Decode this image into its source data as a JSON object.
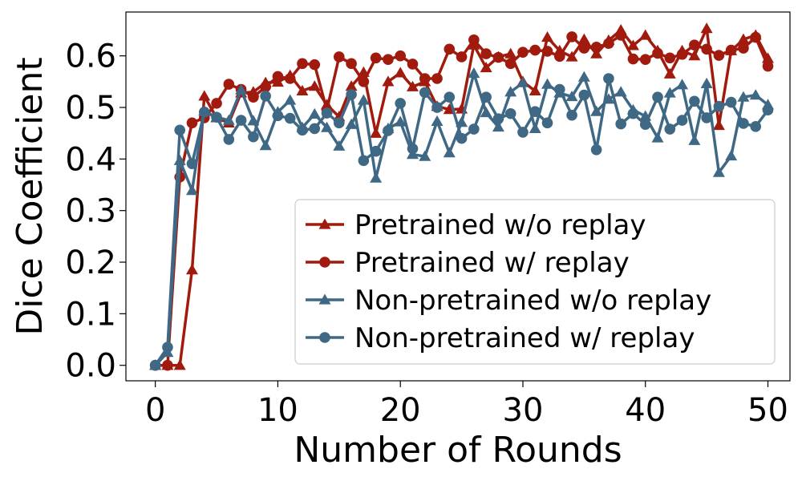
{
  "chart_data": {
    "type": "line",
    "xlabel": "Number of Rounds",
    "ylabel": "Dice Coefficient",
    "xlim": [
      -2.4,
      51.8
    ],
    "ylim": [
      -0.03,
      0.685
    ],
    "xticks": [
      0,
      10,
      20,
      30,
      40,
      50
    ],
    "yticks": [
      0.0,
      0.1,
      0.2,
      0.3,
      0.4,
      0.5,
      0.6
    ],
    "xtick_labels": [
      "0",
      "10",
      "20",
      "30",
      "40",
      "50"
    ],
    "ytick_labels": [
      "0.0",
      "0.1",
      "0.2",
      "0.3",
      "0.4",
      "0.5",
      "0.6"
    ],
    "grid": false,
    "legend_position": "lower-right",
    "x": [
      0,
      1,
      2,
      3,
      4,
      5,
      6,
      7,
      8,
      9,
      10,
      11,
      12,
      13,
      14,
      15,
      16,
      17,
      18,
      19,
      20,
      21,
      22,
      23,
      24,
      25,
      26,
      27,
      28,
      29,
      30,
      31,
      32,
      33,
      34,
      35,
      36,
      37,
      38,
      39,
      40,
      41,
      42,
      43,
      44,
      45,
      46,
      47,
      48,
      49,
      50
    ],
    "series": [
      {
        "name": "Pretrained w/o replay",
        "color": "#a11a0e",
        "marker": "triangle",
        "values": [
          0.0,
          0.0,
          0.0,
          0.185,
          0.522,
          0.48,
          0.47,
          0.528,
          0.53,
          0.548,
          0.549,
          0.562,
          0.532,
          0.541,
          0.505,
          0.482,
          0.541,
          0.568,
          0.45,
          0.55,
          0.567,
          0.54,
          0.55,
          0.502,
          0.496,
          0.497,
          0.621,
          0.577,
          0.598,
          0.604,
          0.55,
          0.532,
          0.636,
          0.61,
          0.598,
          0.632,
          0.604,
          0.63,
          0.65,
          0.62,
          0.64,
          0.61,
          0.565,
          0.61,
          0.6,
          0.653,
          0.465,
          0.61,
          0.632,
          0.64,
          0.595
        ]
      },
      {
        "name": "Pretrained w/ replay",
        "color": "#a11a0e",
        "marker": "circle",
        "values": [
          0.0,
          0.0,
          0.365,
          0.47,
          0.48,
          0.508,
          0.545,
          0.535,
          0.52,
          0.54,
          0.56,
          0.556,
          0.585,
          0.583,
          0.495,
          0.598,
          0.585,
          0.55,
          0.596,
          0.593,
          0.6,
          0.584,
          0.556,
          0.556,
          0.613,
          0.598,
          0.631,
          0.604,
          0.597,
          0.585,
          0.607,
          0.611,
          0.609,
          0.599,
          0.637,
          0.615,
          0.617,
          0.624,
          0.64,
          0.594,
          0.593,
          0.605,
          0.596,
          0.603,
          0.621,
          0.613,
          0.601,
          0.611,
          0.615,
          0.636,
          0.58
        ]
      },
      {
        "name": "Non-pretrained w/o replay",
        "color": "#3f6885",
        "marker": "triangle",
        "values": [
          0.0,
          0.025,
          0.397,
          0.339,
          0.493,
          0.481,
          0.475,
          0.534,
          0.474,
          0.426,
          0.491,
          0.514,
          0.461,
          0.487,
          0.461,
          0.425,
          0.467,
          0.514,
          0.363,
          0.459,
          0.472,
          0.409,
          0.405,
          0.473,
          0.412,
          0.471,
          0.566,
          0.49,
          0.462,
          0.53,
          0.548,
          0.459,
          0.545,
          0.528,
          0.521,
          0.559,
          0.492,
          0.516,
          0.53,
          0.495,
          0.483,
          0.441,
          0.528,
          0.544,
          0.436,
          0.546,
          0.374,
          0.406,
          0.52,
          0.524,
          0.505
        ]
      },
      {
        "name": "Non-pretrained w/ replay",
        "color": "#3f6885",
        "marker": "circle",
        "values": [
          0.0,
          0.035,
          0.456,
          0.391,
          0.491,
          0.481,
          0.438,
          0.475,
          0.443,
          0.522,
          0.484,
          0.479,
          0.456,
          0.459,
          0.489,
          0.47,
          0.525,
          0.397,
          0.415,
          0.455,
          0.508,
          0.42,
          0.529,
          0.5,
          0.52,
          0.44,
          0.458,
          0.52,
          0.478,
          0.488,
          0.452,
          0.492,
          0.47,
          0.535,
          0.485,
          0.524,
          0.418,
          0.556,
          0.468,
          0.488,
          0.467,
          0.52,
          0.458,
          0.475,
          0.512,
          0.48,
          0.502,
          0.51,
          0.469,
          0.463,
          0.495
        ]
      }
    ]
  }
}
